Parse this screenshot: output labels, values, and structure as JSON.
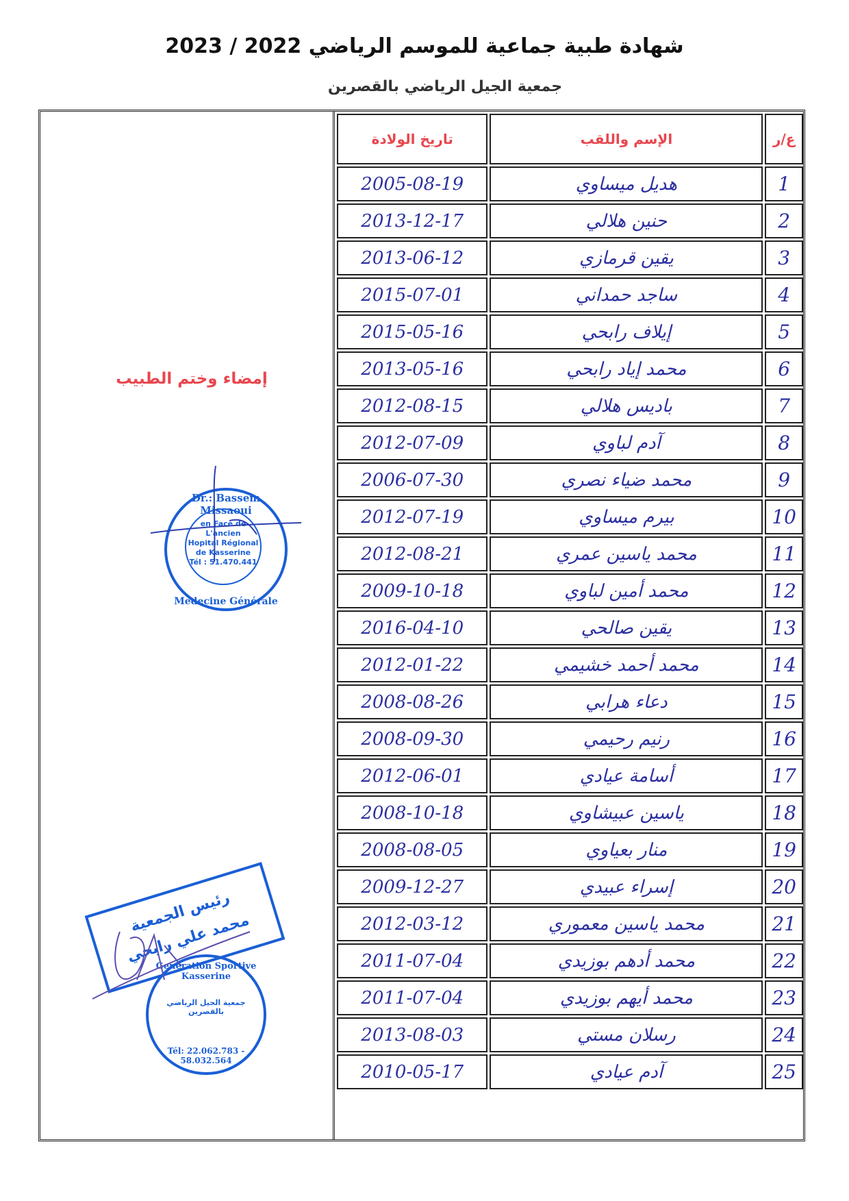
{
  "header": {
    "title": "شهادة طبية جماعية للموسم الرياضي 2022 / 2023",
    "subtitle": "جمعية الجيل الرياضي بالقصرين"
  },
  "table": {
    "columns": {
      "num": "ع/ر",
      "name": "الإسم واللقب",
      "birth_date": "تاريخ الولادة"
    },
    "rows": [
      {
        "num": "1",
        "name": "هديل ميساوي",
        "birth_date": "2005-08-19"
      },
      {
        "num": "2",
        "name": "حنين هلالي",
        "birth_date": "2013-12-17"
      },
      {
        "num": "3",
        "name": "يقين قرمازي",
        "birth_date": "2013-06-12"
      },
      {
        "num": "4",
        "name": "ساجد حمداني",
        "birth_date": "2015-07-01"
      },
      {
        "num": "5",
        "name": "إيلاف رابحي",
        "birth_date": "2015-05-16"
      },
      {
        "num": "6",
        "name": "محمد إياد رابحي",
        "birth_date": "2013-05-16"
      },
      {
        "num": "7",
        "name": "باديس هلالي",
        "birth_date": "2012-08-15"
      },
      {
        "num": "8",
        "name": "آدم لباوي",
        "birth_date": "2012-07-09"
      },
      {
        "num": "9",
        "name": "محمد ضياء نصري",
        "birth_date": "2006-07-30"
      },
      {
        "num": "10",
        "name": "بيرم ميساوي",
        "birth_date": "2012-07-19"
      },
      {
        "num": "11",
        "name": "محمد ياسين عمري",
        "birth_date": "2012-08-21"
      },
      {
        "num": "12",
        "name": "محمد أمين لباوي",
        "birth_date": "2009-10-18"
      },
      {
        "num": "13",
        "name": "يقين صالحي",
        "birth_date": "2016-04-10"
      },
      {
        "num": "14",
        "name": "محمد أحمد خشيمي",
        "birth_date": "2012-01-22"
      },
      {
        "num": "15",
        "name": "دعاء هرابي",
        "birth_date": "2008-08-26"
      },
      {
        "num": "16",
        "name": "رنيم رحيمي",
        "birth_date": "2008-09-30"
      },
      {
        "num": "17",
        "name": "أسامة عيادي",
        "birth_date": "2012-06-01"
      },
      {
        "num": "18",
        "name": "ياسين عبيشاوي",
        "birth_date": "2008-10-18"
      },
      {
        "num": "19",
        "name": "منار بعياوي",
        "birth_date": "2008-08-05"
      },
      {
        "num": "20",
        "name": "إسراء عبيدي",
        "birth_date": "2009-12-27"
      },
      {
        "num": "21",
        "name": "محمد ياسين معموري",
        "birth_date": "2012-03-12"
      },
      {
        "num": "22",
        "name": "محمد أدهم بوزيدي",
        "birth_date": "2011-07-04"
      },
      {
        "num": "23",
        "name": "محمد أيهم بوزيدي",
        "birth_date": "2011-07-04"
      },
      {
        "num": "24",
        "name": "رسلان مستي",
        "birth_date": "2013-08-03"
      },
      {
        "num": "25",
        "name": "آدم عيادي",
        "birth_date": "2010-05-17"
      }
    ]
  },
  "doctor": {
    "label": "إمضاء وختم الطبيب",
    "stamp": {
      "name": "Dr.: Bassem Missaoui",
      "lines": [
        "en Face de",
        "L'ancien",
        "Hopital Régional",
        "de Kasserine",
        "Tél : 51.470.441"
      ],
      "specialty": "Medecine Générale"
    }
  },
  "club": {
    "president_stamp": {
      "title": "رئيس الجمعية",
      "name": "محمد علي رابحي"
    },
    "club_stamp": {
      "name_fr": "Generation Sportive Kasserine",
      "name_ar": "جمعية الجيل الرياضي بالقصرين",
      "phone": "Tél: 22.062.783 - 58.032.564"
    }
  },
  "colors": {
    "header_red": "#e8474f",
    "ink_blue": "#2b2fa0",
    "stamp_blue": "#1a5fd6"
  }
}
